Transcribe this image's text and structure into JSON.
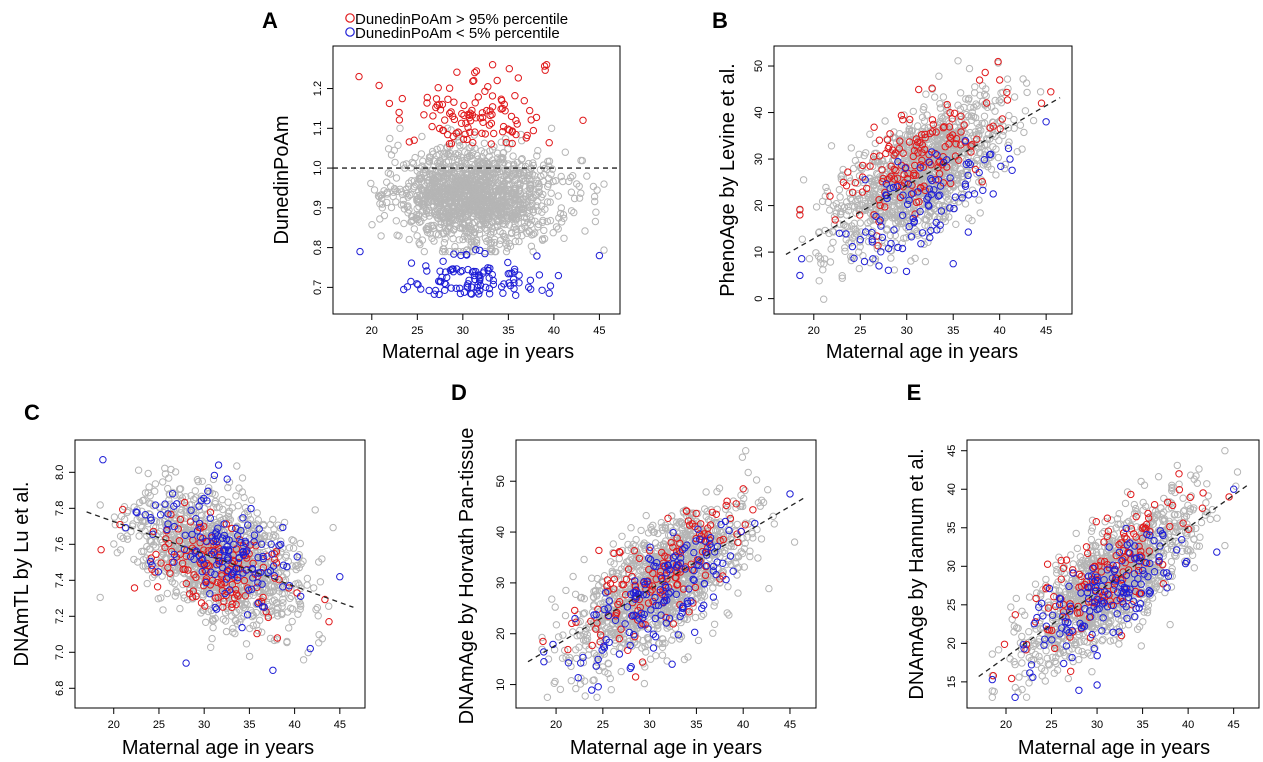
{
  "colors": {
    "high": "#e0191b",
    "low": "#1f1fd6",
    "other": "#b5b5b5",
    "reference_line": "#222222"
  },
  "legend": {
    "high_label": "DunedinPoAm > 95% percentile",
    "low_label": "DunedinPoAm < 5% percentile"
  },
  "chart_data": [
    {
      "panel": "A",
      "type": "scatter",
      "xlabel": "Maternal age in years",
      "ylabel": "DunedinPoAm",
      "xlim": [
        17,
        46
      ],
      "ylim": [
        0.66,
        1.28
      ],
      "xticks": [
        20,
        25,
        30,
        35,
        40,
        45
      ],
      "yticks": [
        0.7,
        0.8,
        0.9,
        1.0,
        1.1,
        1.2
      ],
      "ytick_labels": [
        "0.7",
        "0.8",
        "0.9",
        "1.0",
        "1.1",
        "1.2"
      ],
      "reference_line": {
        "style": "dashed",
        "y": 1.0
      },
      "model": {
        "a": 0.93,
        "b": 0,
        "sd": 0.06,
        "x_mean": 31.5,
        "x_sd": 4.4,
        "x_min": 18.5,
        "x_max": 45.5,
        "n_gray": 1400,
        "n_red": 110,
        "n_blue": 105,
        "red_min": 1.06,
        "red_max": 1.26,
        "blue_min": 0.68,
        "blue_max": 0.8,
        "split": true
      },
      "highlights": {
        "high": [
          [
            18.6,
            1.23
          ],
          [
            31.3,
            1.24
          ],
          [
            31.2,
            1.22
          ],
          [
            35.1,
            1.25
          ],
          [
            39.2,
            1.26
          ],
          [
            43.2,
            1.12
          ],
          [
            23,
            1.14
          ]
        ],
        "low": [
          [
            18.7,
            0.79
          ],
          [
            45,
            0.78
          ],
          [
            35.8,
            0.68
          ],
          [
            28,
            0.71
          ]
        ]
      }
    },
    {
      "panel": "B",
      "type": "scatter",
      "xlabel": "Maternal age in years",
      "ylabel": "PhenoAge by Levine et al.",
      "xlim": [
        17,
        46.5
      ],
      "ylim": [
        -1,
        52
      ],
      "xticks": [
        20,
        25,
        30,
        35,
        40,
        45
      ],
      "yticks": [
        0,
        10,
        20,
        30,
        40,
        50
      ],
      "ytick_labels": [
        "0",
        "10",
        "20",
        "30",
        "40",
        "50"
      ],
      "reference_line": {
        "style": "dashed",
        "x": [
          17,
          46.5
        ],
        "y": [
          9.5,
          43.2
        ]
      },
      "model": {
        "a": -8.5,
        "b": 1.12,
        "sd": 6,
        "x_mean": 31.5,
        "x_sd": 4.4,
        "x_min": 18.5,
        "x_max": 45.5,
        "n_gray": 1250,
        "n_red": 150,
        "n_blue": 100,
        "red_shift": 3.5,
        "blue_shift": -7
      },
      "highlights": {
        "high": [
          [
            18.5,
            18
          ],
          [
            40,
            47
          ],
          [
            44.5,
            42
          ]
        ],
        "low": [
          [
            18.5,
            5
          ],
          [
            45,
            38
          ],
          [
            35,
            7.5
          ]
        ]
      }
    },
    {
      "panel": "C",
      "type": "scatter",
      "xlabel": "Maternal age in years",
      "ylabel": "DNAmTL by Lu et al.",
      "xlim": [
        17,
        46.5
      ],
      "ylim": [
        6.75,
        8.12
      ],
      "xticks": [
        20,
        25,
        30,
        35,
        40,
        45
      ],
      "yticks": [
        6.8,
        7.0,
        7.2,
        7.4,
        7.6,
        7.8,
        8.0
      ],
      "ytick_labels": [
        "6.8",
        "7.0",
        "7.2",
        "7.4",
        "7.6",
        "7.8",
        "8.0"
      ],
      "reference_line": {
        "style": "dashed",
        "x": [
          17,
          46.5
        ],
        "y": [
          7.78,
          7.25
        ]
      },
      "model": {
        "a": 8.09,
        "b": -0.018,
        "sd": 0.16,
        "x_mean": 31.5,
        "x_sd": 4.4,
        "x_min": 18.5,
        "x_max": 45.5,
        "n_gray": 1250,
        "n_red": 150,
        "n_blue": 150,
        "red_shift": -0.07,
        "blue_shift": 0.07
      },
      "highlights": {
        "high": [
          [
            18.6,
            7.57
          ],
          [
            43.8,
            7.17
          ]
        ],
        "low": [
          [
            18.8,
            8.07
          ],
          [
            45,
            7.42
          ],
          [
            28,
            6.94
          ],
          [
            37.6,
            6.9
          ],
          [
            31.6,
            8.04
          ]
        ]
      }
    },
    {
      "panel": "D",
      "type": "scatter",
      "xlabel": "Maternal age in years",
      "ylabel": "DNAmAge by Horvath Pan-tissue",
      "xlim": [
        17,
        46.5
      ],
      "ylim": [
        7.5,
        56
      ],
      "xticks": [
        20,
        25,
        30,
        35,
        40,
        45
      ],
      "yticks": [
        10,
        20,
        30,
        40,
        50
      ],
      "ytick_labels": [
        "10",
        "20",
        "30",
        "40",
        "50"
      ],
      "reference_line": {
        "style": "dashed",
        "x": [
          17,
          46.5
        ],
        "y": [
          14.5,
          46.7
        ]
      },
      "model": {
        "a": -4,
        "b": 1.09,
        "sd": 5.5,
        "x_mean": 31.5,
        "x_sd": 4.4,
        "x_min": 18.5,
        "x_max": 45.5,
        "n_gray": 1250,
        "n_red": 150,
        "n_blue": 150,
        "red_shift": 2,
        "blue_shift": -3
      },
      "highlights": {
        "high": [
          [
            18.6,
            18.5
          ],
          [
            28.5,
            11.5
          ],
          [
            40,
            48.5
          ]
        ],
        "low": [
          [
            45,
            47.5
          ],
          [
            18.7,
            14.5
          ],
          [
            32.4,
            14
          ]
        ]
      }
    },
    {
      "panel": "E",
      "type": "scatter",
      "xlabel": "Maternal age in years",
      "ylabel": "DNAmAge by Hannum et al.",
      "xlim": [
        17,
        46.5
      ],
      "ylim": [
        13,
        45
      ],
      "xticks": [
        20,
        25,
        30,
        35,
        40,
        45
      ],
      "yticks": [
        15,
        20,
        25,
        30,
        35,
        40,
        45
      ],
      "ytick_labels": [
        "15",
        "20",
        "25",
        "30",
        "35",
        "40",
        "45"
      ],
      "reference_line": {
        "style": "dashed",
        "x": [
          17,
          46.5
        ],
        "y": [
          15.7,
          40.5
        ]
      },
      "model": {
        "a": 1.4,
        "b": 0.84,
        "sd": 3.4,
        "x_mean": 31.5,
        "x_sd": 4.4,
        "x_min": 18.5,
        "x_max": 45.5,
        "n_gray": 1250,
        "n_red": 150,
        "n_blue": 150,
        "red_shift": 1,
        "blue_shift": -1
      },
      "highlights": {
        "high": [
          [
            18.6,
            15.8
          ],
          [
            39,
            42
          ],
          [
            44.5,
            39
          ]
        ],
        "low": [
          [
            18.5,
            15.3
          ],
          [
            45,
            40
          ],
          [
            28,
            13.9
          ],
          [
            30,
            14.6
          ]
        ]
      }
    }
  ]
}
